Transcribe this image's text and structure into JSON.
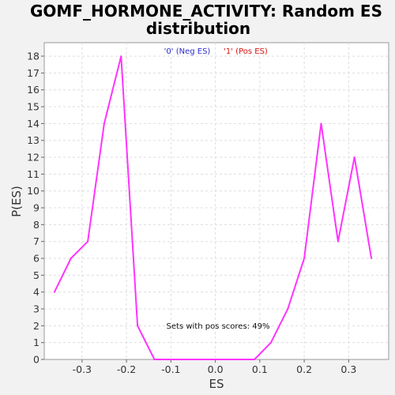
{
  "chart_data": {
    "type": "line",
    "title_line1": "GOMF_HORMONE_ACTIVITY: Random ES",
    "title_line2": "distribution",
    "xlabel": "ES",
    "ylabel": "P(ES)",
    "xlim": [
      -0.385,
      0.39
    ],
    "ylim": [
      0,
      18.8
    ],
    "x_ticks": [
      -0.3,
      -0.2,
      -0.1,
      0.0,
      0.1,
      0.2,
      0.3
    ],
    "x_tick_labels": [
      "-0.3",
      "-0.2",
      "-0.1",
      "0.0",
      "0.1",
      "0.2",
      "0.3"
    ],
    "y_ticks": [
      0,
      1,
      2,
      3,
      4,
      5,
      6,
      7,
      8,
      9,
      10,
      11,
      12,
      13,
      14,
      15,
      16,
      17,
      18
    ],
    "grid": true,
    "legend": {
      "placement": "top-center",
      "entries": [
        {
          "label": "'0' (Neg ES)",
          "color": "#2a2acc"
        },
        {
          "label": "'1' (Pos ES)",
          "color": "#dd1111"
        }
      ]
    },
    "annotation": "Sets with pos scores: 49%",
    "series": [
      {
        "color": "#ff33ff",
        "x": [
          -0.362,
          -0.325,
          -0.287,
          -0.25,
          -0.212,
          -0.175,
          -0.137,
          -0.1,
          -0.062,
          -0.025,
          0.012,
          0.05,
          0.088,
          0.125,
          0.163,
          0.2,
          0.238,
          0.276,
          0.313,
          0.351
        ],
        "y": [
          4,
          6,
          7,
          14,
          18,
          2,
          0,
          0,
          0,
          0,
          0,
          0,
          0,
          1,
          3,
          6,
          14,
          7,
          12,
          6
        ]
      }
    ]
  }
}
